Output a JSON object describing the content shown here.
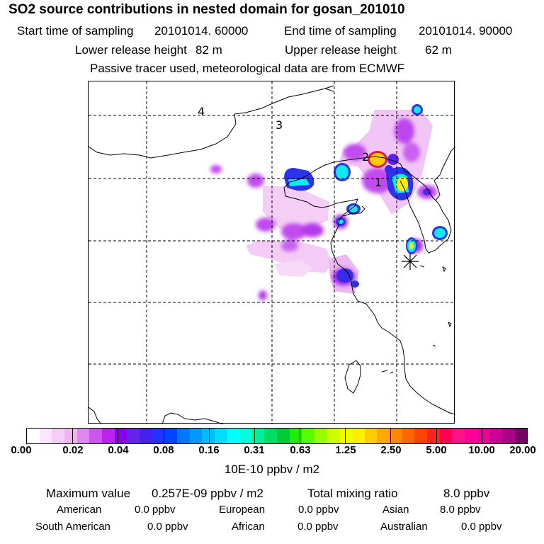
{
  "title": "SO2 source contributions in nested domain for gosan_201010",
  "header": {
    "start_label": "Start time of sampling",
    "start_value": "20101014. 60000",
    "end_label": "End time of sampling",
    "end_value": "20101014. 90000",
    "lower_label": "Lower release height",
    "lower_value": "82 m",
    "upper_label": "Upper release height",
    "upper_value": "62 m",
    "note": "Passive tracer used, meteorological data are from ECMWF"
  },
  "map": {
    "grid_labels": [
      "1",
      "2",
      "3",
      "4"
    ],
    "receptor_marker": "asterisk-icon"
  },
  "colorbar": {
    "tick_labels": [
      "0.00",
      "0.02",
      "0.04",
      "0.08",
      "0.16",
      "0.31",
      "0.63",
      "1.25",
      "2.50",
      "5.00",
      "10.00",
      "20.00"
    ],
    "colors": [
      "#ffffff",
      "#fbe6fb",
      "#f6cdf6",
      "#f0b3f0",
      "#dd88ee",
      "#cc55ee",
      "#bb22ee",
      "#8800ee",
      "#6622ee",
      "#4422ee",
      "#2233ff",
      "#0044ff",
      "#0077ff",
      "#0099ff",
      "#00bbff",
      "#00ddff",
      "#00ffff",
      "#00ffdd",
      "#00ee99",
      "#00dd66",
      "#00cc33",
      "#22ee00",
      "#55ff00",
      "#99ff00",
      "#ccff00",
      "#eeff00",
      "#ffee00",
      "#ffcc00",
      "#ffaa00",
      "#ff8800",
      "#ff6600",
      "#ff4400",
      "#ff2222",
      "#ff0055",
      "#ff1188",
      "#ff0099",
      "#ee0099",
      "#cc0099",
      "#aa0088",
      "#770066"
    ],
    "unit": "10E-10 ppbv / m2"
  },
  "summary": {
    "max_label": "Maximum value",
    "max_value": "0.257E-09 ppbv / m2",
    "total_label": "Total mixing ratio",
    "total_value": "8.0 ppbv",
    "regions": [
      {
        "name": "American",
        "value": "0.0 ppbv"
      },
      {
        "name": "European",
        "value": "0.0 ppbv"
      },
      {
        "name": "Asian",
        "value": "8.0 ppbv"
      },
      {
        "name": "South American",
        "value": "0.0 ppbv"
      },
      {
        "name": "African",
        "value": "0.0 ppbv"
      },
      {
        "name": "Australian",
        "value": "0.0 ppbv"
      }
    ]
  }
}
